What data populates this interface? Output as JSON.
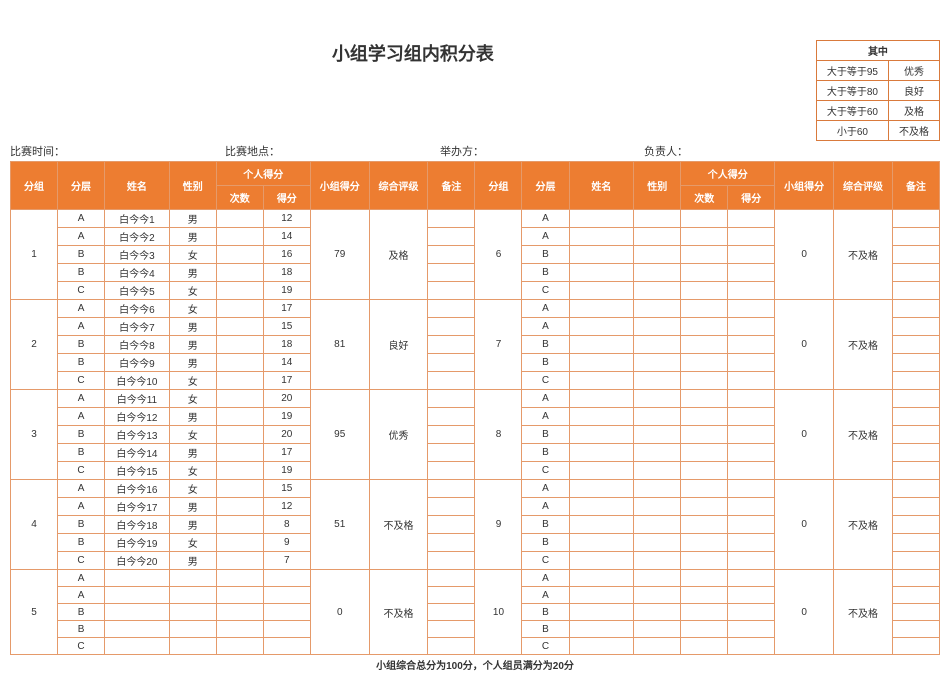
{
  "title": "小组学习组内积分表",
  "legend": {
    "header": "其中",
    "rows": [
      {
        "threshold": "大于等于95",
        "label": "优秀"
      },
      {
        "threshold": "大于等于80",
        "label": "良好"
      },
      {
        "threshold": "大于等于60",
        "label": "及格"
      },
      {
        "threshold": "小于60",
        "label": "不及格"
      }
    ]
  },
  "meta": {
    "time_label": "比赛时间：",
    "place_label": "比赛地点：",
    "organizer_label": "举办方：",
    "leader_label": "负责人："
  },
  "headers": {
    "group": "分组",
    "layer": "分层",
    "name": "姓名",
    "gender": "性别",
    "personal": "个人得分",
    "count": "次数",
    "score": "得分",
    "group_score": "小组得分",
    "rating": "综合评级",
    "remark": "备注"
  },
  "left_groups": [
    {
      "group": "1",
      "group_score": "79",
      "rating": "及格",
      "members": [
        {
          "layer": "A",
          "name": "白今今1",
          "gender": "男",
          "score": "12"
        },
        {
          "layer": "A",
          "name": "白今今2",
          "gender": "男",
          "score": "14"
        },
        {
          "layer": "B",
          "name": "白今今3",
          "gender": "女",
          "score": "16"
        },
        {
          "layer": "B",
          "name": "白今今4",
          "gender": "男",
          "score": "18"
        },
        {
          "layer": "C",
          "name": "白今今5",
          "gender": "女",
          "score": "19"
        }
      ]
    },
    {
      "group": "2",
      "group_score": "81",
      "rating": "良好",
      "members": [
        {
          "layer": "A",
          "name": "白今今6",
          "gender": "女",
          "score": "17"
        },
        {
          "layer": "A",
          "name": "白今今7",
          "gender": "男",
          "score": "15"
        },
        {
          "layer": "B",
          "name": "白今今8",
          "gender": "男",
          "score": "18"
        },
        {
          "layer": "B",
          "name": "白今今9",
          "gender": "男",
          "score": "14"
        },
        {
          "layer": "C",
          "name": "白今今10",
          "gender": "女",
          "score": "17"
        }
      ]
    },
    {
      "group": "3",
      "group_score": "95",
      "rating": "优秀",
      "members": [
        {
          "layer": "A",
          "name": "白今今11",
          "gender": "女",
          "score": "20"
        },
        {
          "layer": "A",
          "name": "白今今12",
          "gender": "男",
          "score": "19"
        },
        {
          "layer": "B",
          "name": "白今今13",
          "gender": "女",
          "score": "20"
        },
        {
          "layer": "B",
          "name": "白今今14",
          "gender": "男",
          "score": "17"
        },
        {
          "layer": "C",
          "name": "白今今15",
          "gender": "女",
          "score": "19"
        }
      ]
    },
    {
      "group": "4",
      "group_score": "51",
      "rating": "不及格",
      "members": [
        {
          "layer": "A",
          "name": "白今今16",
          "gender": "女",
          "score": "15"
        },
        {
          "layer": "A",
          "name": "白今今17",
          "gender": "男",
          "score": "12"
        },
        {
          "layer": "B",
          "name": "白今今18",
          "gender": "男",
          "score": "8"
        },
        {
          "layer": "B",
          "name": "白今今19",
          "gender": "女",
          "score": "9"
        },
        {
          "layer": "C",
          "name": "白今今20",
          "gender": "男",
          "score": "7"
        }
      ]
    },
    {
      "group": "5",
      "group_score": "0",
      "rating": "不及格",
      "members": [
        {
          "layer": "A",
          "name": "",
          "gender": "",
          "score": ""
        },
        {
          "layer": "A",
          "name": "",
          "gender": "",
          "score": ""
        },
        {
          "layer": "B",
          "name": "",
          "gender": "",
          "score": ""
        },
        {
          "layer": "B",
          "name": "",
          "gender": "",
          "score": ""
        },
        {
          "layer": "C",
          "name": "",
          "gender": "",
          "score": ""
        }
      ]
    }
  ],
  "right_groups": [
    {
      "group": "6",
      "group_score": "0",
      "rating": "不及格",
      "members": [
        {
          "layer": "A",
          "name": "",
          "gender": "",
          "score": ""
        },
        {
          "layer": "A",
          "name": "",
          "gender": "",
          "score": ""
        },
        {
          "layer": "B",
          "name": "",
          "gender": "",
          "score": ""
        },
        {
          "layer": "B",
          "name": "",
          "gender": "",
          "score": ""
        },
        {
          "layer": "C",
          "name": "",
          "gender": "",
          "score": ""
        }
      ]
    },
    {
      "group": "7",
      "group_score": "0",
      "rating": "不及格",
      "members": [
        {
          "layer": "A",
          "name": "",
          "gender": "",
          "score": ""
        },
        {
          "layer": "A",
          "name": "",
          "gender": "",
          "score": ""
        },
        {
          "layer": "B",
          "name": "",
          "gender": "",
          "score": ""
        },
        {
          "layer": "B",
          "name": "",
          "gender": "",
          "score": ""
        },
        {
          "layer": "C",
          "name": "",
          "gender": "",
          "score": ""
        }
      ]
    },
    {
      "group": "8",
      "group_score": "0",
      "rating": "不及格",
      "members": [
        {
          "layer": "A",
          "name": "",
          "gender": "",
          "score": ""
        },
        {
          "layer": "A",
          "name": "",
          "gender": "",
          "score": ""
        },
        {
          "layer": "B",
          "name": "",
          "gender": "",
          "score": ""
        },
        {
          "layer": "B",
          "name": "",
          "gender": "",
          "score": ""
        },
        {
          "layer": "C",
          "name": "",
          "gender": "",
          "score": ""
        }
      ]
    },
    {
      "group": "9",
      "group_score": "0",
      "rating": "不及格",
      "members": [
        {
          "layer": "A",
          "name": "",
          "gender": "",
          "score": ""
        },
        {
          "layer": "A",
          "name": "",
          "gender": "",
          "score": ""
        },
        {
          "layer": "B",
          "name": "",
          "gender": "",
          "score": ""
        },
        {
          "layer": "B",
          "name": "",
          "gender": "",
          "score": ""
        },
        {
          "layer": "C",
          "name": "",
          "gender": "",
          "score": ""
        }
      ]
    },
    {
      "group": "10",
      "group_score": "0",
      "rating": "不及格",
      "members": [
        {
          "layer": "A",
          "name": "",
          "gender": "",
          "score": ""
        },
        {
          "layer": "A",
          "name": "",
          "gender": "",
          "score": ""
        },
        {
          "layer": "B",
          "name": "",
          "gender": "",
          "score": ""
        },
        {
          "layer": "B",
          "name": "",
          "gender": "",
          "score": ""
        },
        {
          "layer": "C",
          "name": "",
          "gender": "",
          "score": ""
        }
      ]
    }
  ],
  "footer": "小组综合总分为100分，个人组员满分为20分",
  "colors": {
    "header_bg": "#ed7d31",
    "border": "#e59a6a",
    "legend_border": "#d97a3c"
  }
}
